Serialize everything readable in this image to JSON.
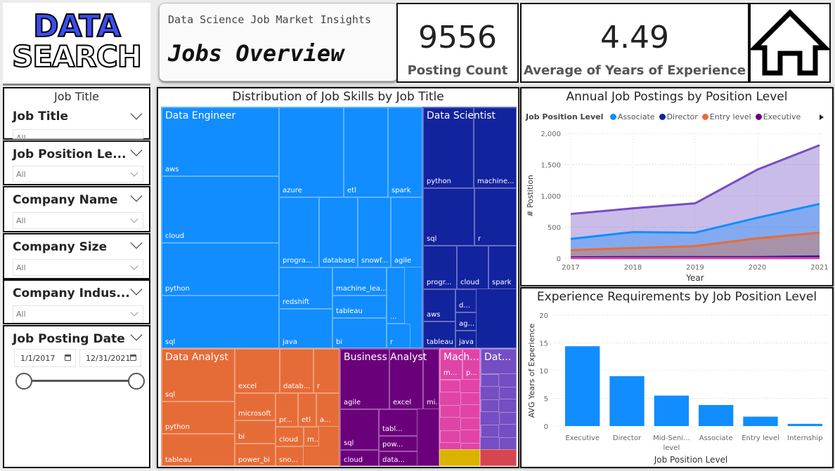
{
  "logo": {
    "line1": "DATA",
    "line2": "SEARCH"
  },
  "header": {
    "subtitle": "Data Science Job Market Insights",
    "title": "Jobs Overview"
  },
  "kpis": {
    "posting_count": {
      "value": "9556",
      "label": "Posting Count"
    },
    "avg_experience": {
      "value": "4.49",
      "label": "Average of Years of Experience"
    }
  },
  "home_button": {
    "icon": "home-icon"
  },
  "slicers": {
    "job_title": {
      "header": "Job Title",
      "title": "Job Title",
      "value": "All"
    },
    "position_level": {
      "title": "Job Position Le...",
      "value": "All"
    },
    "company_name": {
      "title": "Company Name",
      "value": "All"
    },
    "company_size": {
      "title": "Company Size",
      "value": "All"
    },
    "company_industry": {
      "title": "Company Indus...",
      "value": "All"
    },
    "posting_date": {
      "title": "Job Posting Date",
      "start": "1/1/2017",
      "end": "12/31/2021",
      "range_fraction": [
        0,
        1
      ]
    }
  },
  "treemap": {
    "title": "Distribution of Job Skills by Job Title",
    "groups": [
      {
        "name": "Data Engineer",
        "color": "#118dff",
        "skills": [
          "aws",
          "cloud",
          "python",
          "sql",
          "azure",
          "etl",
          "spark",
          "progra...",
          "database",
          "snowf...",
          "agile",
          "redshift",
          "java",
          "machine_lea...",
          "tableau",
          "bi",
          "...",
          "r"
        ]
      },
      {
        "name": "Data Scientist",
        "color": "#12239e",
        "skills": [
          "python",
          "machine...",
          "sql",
          "r",
          "progr...",
          "cloud",
          "spark",
          "aws",
          "tableau",
          "d...",
          "ag...",
          "java"
        ]
      },
      {
        "name": "Data Analyst",
        "color": "#e66c37",
        "skills": [
          "sql",
          "python",
          "tableau",
          "excel",
          "datab...",
          "r",
          "microsoft",
          "bi",
          "power_bi",
          "pr...",
          "etl",
          "a...",
          "cloud",
          "m...",
          "sno..."
        ]
      },
      {
        "name": "Business Analyst",
        "color": "#6b007b",
        "skills": [
          "agile",
          "excel",
          "mi...",
          "sql",
          "cloud",
          "tabl...",
          "pow...",
          "data..."
        ]
      },
      {
        "name": "Mach...",
        "color": "#e044a7",
        "skills": [
          "m...",
          "p..."
        ]
      },
      {
        "name": "Dat...",
        "color": "#744ec2",
        "skills": []
      }
    ]
  },
  "chart_data": [
    {
      "type": "area",
      "title": "Annual Job Postings by Position Level",
      "legend_title": "Job Position Level",
      "legend_placement": "top-left",
      "xlabel": "Year",
      "ylabel": "# Postition",
      "x": [
        2017,
        2018,
        2019,
        2020,
        2021
      ],
      "ylim": [
        0,
        2000
      ],
      "yticks": [
        "0",
        "500",
        "1,000",
        "1,500",
        "2,000"
      ],
      "grid": true,
      "series": [
        {
          "name": "Mid-Senior level",
          "color": "#744ec2",
          "values": [
            710,
            800,
            880,
            1420,
            1810
          ],
          "in_legend": false
        },
        {
          "name": "Associate",
          "color": "#118dff",
          "values": [
            310,
            420,
            410,
            650,
            870
          ]
        },
        {
          "name": "Entry level",
          "color": "#e66c37",
          "values": [
            130,
            165,
            195,
            320,
            410
          ]
        },
        {
          "name": "Director",
          "color": "#12239e",
          "values": [
            15,
            20,
            20,
            20,
            30
          ]
        },
        {
          "name": "Executive",
          "color": "#6b007b",
          "values": [
            5,
            8,
            8,
            8,
            10
          ]
        },
        {
          "name": "Internship",
          "color": "#e044a7",
          "values": [
            3,
            3,
            3,
            3,
            3
          ],
          "in_legend": false
        }
      ],
      "legend": [
        {
          "name": "Associate",
          "color": "#118dff"
        },
        {
          "name": "Director",
          "color": "#12239e"
        },
        {
          "name": "Entry level",
          "color": "#e66c37"
        },
        {
          "name": "Executive",
          "color": "#6b007b"
        }
      ]
    },
    {
      "type": "bar",
      "title": "Experience Requirements by Job Position Level",
      "xlabel": "Job Position Level",
      "ylabel": "AVG Years of Experience",
      "categories": [
        "Executive",
        "Director",
        "Mid-Seni... level",
        "Associate",
        "Entry level",
        "Internship"
      ],
      "category_lines": [
        [
          "Executive"
        ],
        [
          "Director"
        ],
        [
          "Mid-Seni...",
          "level"
        ],
        [
          "Associate"
        ],
        [
          "Entry level"
        ],
        [
          "Internship"
        ]
      ],
      "values": [
        14.4,
        9.0,
        5.5,
        3.8,
        1.7,
        0.4
      ],
      "ylim": [
        0,
        20
      ],
      "yticks": [
        "0",
        "5",
        "10",
        "15",
        "20"
      ],
      "grid": true,
      "color": "#118dff"
    }
  ]
}
